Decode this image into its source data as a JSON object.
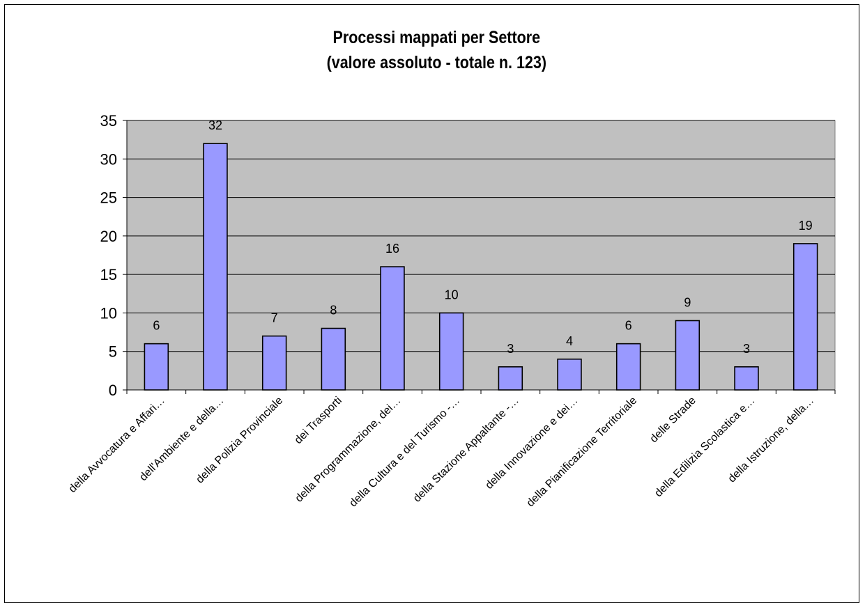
{
  "chart_data": {
    "type": "bar",
    "title": "Processi mappati per Settore",
    "subtitle": "(valore assoluto - totale n. 123)",
    "xlabel": "",
    "ylabel": "",
    "ylim": [
      0,
      35
    ],
    "yticks": [
      0,
      5,
      10,
      15,
      20,
      25,
      30,
      35
    ],
    "ytick_labels": [
      "0",
      "5",
      "10",
      "15",
      "20",
      "25",
      "30",
      "35"
    ],
    "grid": true,
    "legend": "none",
    "categories": [
      "della Avvocatura e Affari…",
      "dell'Ambiente e della…",
      "della Polizia Provinciale",
      "dei Trasporti",
      "della Programmazione, dei…",
      "della Cultura e del Turismo -…",
      "della Stazione Appaltante -…",
      "della Innovazione e dei…",
      "della Pianificazione Territoriale",
      "delle Strade",
      "della Edilizia Scolastica e…",
      "della Istruzione, della…"
    ],
    "values": [
      6,
      32,
      7,
      8,
      16,
      10,
      3,
      4,
      6,
      9,
      3,
      19
    ],
    "value_labels": [
      "6",
      "32",
      "7",
      "8",
      "16",
      "10",
      "3",
      "4",
      "6",
      "9",
      "3",
      "19"
    ],
    "colors": {
      "bar_fill": "#9999FF",
      "bar_stroke": "#000000",
      "plot_background": "#C0C0C0",
      "gridline": "#000000"
    }
  }
}
